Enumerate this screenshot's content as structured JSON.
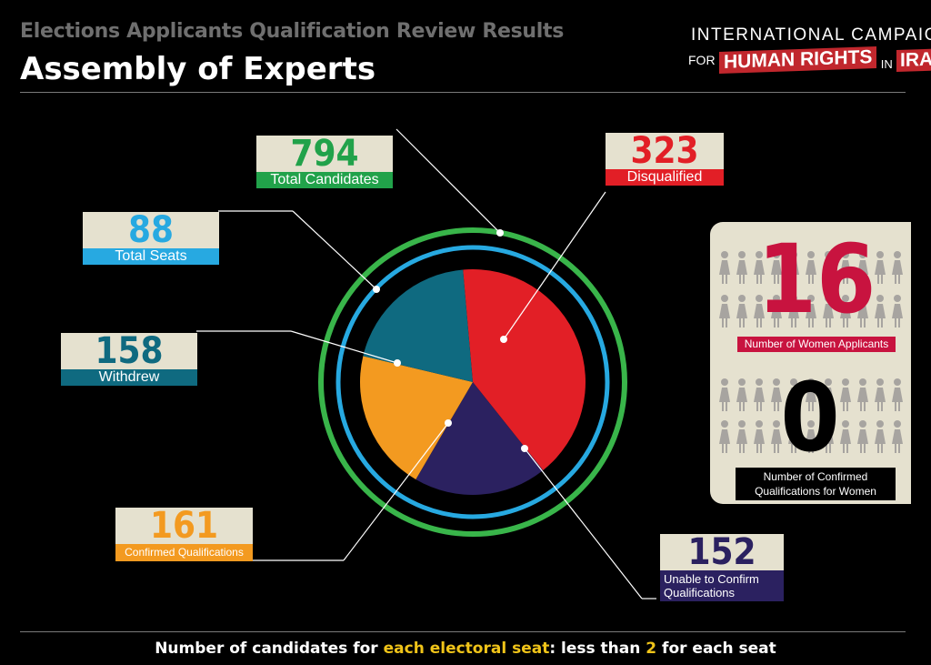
{
  "header": {
    "subtitle": "Elections Applicants Qualification Review Results",
    "title": "Assembly of Experts"
  },
  "logo": {
    "line1": "INTERNATIONAL CAMPAIGN",
    "for": "FOR",
    "human_rights": "HUMAN RIGHTS",
    "in": "IN",
    "iran": "IRAN"
  },
  "chart_data": {
    "type": "pie",
    "slices": [
      {
        "name": "Disqualified",
        "value": 323,
        "color": "#e21f26"
      },
      {
        "name": "Unable to Confirm Qualifications",
        "value": 152,
        "color": "#2b2160"
      },
      {
        "name": "Confirmed Qualifications",
        "value": 161,
        "color": "#f39a20"
      },
      {
        "name": "Withdrew",
        "value": 158,
        "color": "#0f6a80"
      }
    ],
    "total": 794
  },
  "callouts": {
    "total_candidates": {
      "value": "794",
      "label": "Total Candidates",
      "color": "#21a24a"
    },
    "total_seats": {
      "value": "88",
      "label": "Total Seats",
      "color": "#27a9e1"
    },
    "withdrew": {
      "value": "158",
      "label": "Withdrew",
      "color": "#0f6a80"
    },
    "confirmed": {
      "value": "161",
      "label": "Confirmed Qualifications",
      "color": "#f39a20"
    },
    "disqualified": {
      "value": "323",
      "label": "Disqualified",
      "color": "#e21f26"
    },
    "unable": {
      "value": "152",
      "label_line1": "Unable to Confirm",
      "label_line2": "Qualifications",
      "color": "#2b2160"
    }
  },
  "women": {
    "applicants_value": "16",
    "applicants_label": "Number of Women Applicants",
    "applicants_color": "#c8133f",
    "confirmed_value": "0",
    "confirmed_label_line1": "Number of Confirmed",
    "confirmed_label_line2": "Qualifications for Women"
  },
  "footer": {
    "part1": "Number of candidates for ",
    "highlight1": "each electoral seat",
    "part2": ": less than ",
    "highlight2": "2",
    "part3": " for each seat"
  }
}
